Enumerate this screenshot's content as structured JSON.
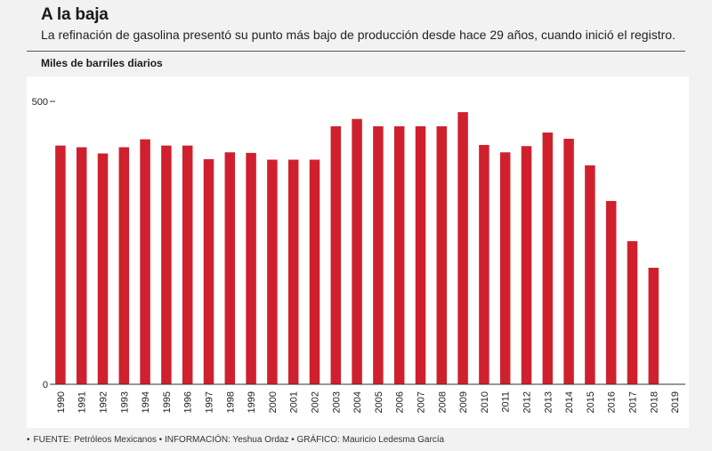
{
  "header": {
    "title": "A la baja",
    "subtitle": "La refinación de gasolina presentó su punto más bajo de producción desde hace 29 años, cuando inició el registro."
  },
  "footer": {
    "credits": "FUENTE: Petróleos Mexicanos • INFORMACIÓN: Yeshua Ordaz • GRÁFICO: Mauricio Ledesma García"
  },
  "colors": {
    "bar": "#d0202e",
    "axis": "#333333",
    "gridline": "#cccccc",
    "panel": "#ffffff",
    "background": "#f2f2f2"
  },
  "chart_data": {
    "type": "bar",
    "title": "",
    "xlabel": "",
    "ylabel": "Miles de barriles diarios",
    "ylim": [
      0,
      500
    ],
    "yticks": [
      0,
      500
    ],
    "grid": false,
    "categories": [
      "1990",
      "1991",
      "1992",
      "1993",
      "1994",
      "1995",
      "1996",
      "1997",
      "1998",
      "1999",
      "2000",
      "2001",
      "2002",
      "2003",
      "2004",
      "2005",
      "2006",
      "2007",
      "2008",
      "2009",
      "2010",
      "2011",
      "2012",
      "2013",
      "2014",
      "2015",
      "2016",
      "2017",
      "2018",
      "2019"
    ],
    "values": [
      422,
      419,
      408,
      419,
      433,
      422,
      422,
      398,
      410,
      409,
      397,
      397,
      397,
      456,
      469,
      456,
      456,
      456,
      456,
      481,
      423,
      410,
      421,
      445,
      434,
      387,
      324,
      253,
      206,
      null
    ]
  }
}
